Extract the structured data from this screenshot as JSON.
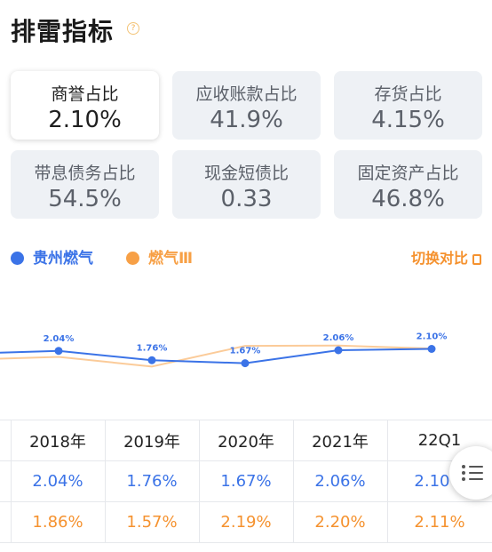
{
  "header": {
    "title": "排雷指标",
    "help_icon": "question-circle-icon"
  },
  "metrics": [
    {
      "label": "商誉占比",
      "value": "2.10%",
      "active": true
    },
    {
      "label": "应收账款占比",
      "value": "41.9%"
    },
    {
      "label": "存货占比",
      "value": "4.15%"
    },
    {
      "label": "带息债务占比",
      "value": "54.5%"
    },
    {
      "label": "现金短债比",
      "value": "0.33"
    },
    {
      "label": "固定资产占比",
      "value": "46.8%"
    }
  ],
  "legend": {
    "series1": {
      "name": "贵州燃气",
      "color": "#3b73e7"
    },
    "series2": {
      "name": "燃气Ⅲ",
      "color": "#f7a046"
    },
    "switch_label": "切换对比",
    "switch_icon": "toggle-compare-icon"
  },
  "chart_data": {
    "type": "line",
    "x": [
      "2018年",
      "2019年",
      "2020年",
      "2021年",
      "22Q1"
    ],
    "series": [
      {
        "name": "贵州燃气",
        "values": [
          2.04,
          1.76,
          1.67,
          2.06,
          2.1
        ],
        "labels": [
          "2.04%",
          "1.76%",
          "1.67%",
          "2.06%",
          "2.10%"
        ]
      },
      {
        "name": "燃气Ⅲ",
        "values": [
          1.86,
          1.57,
          2.19,
          2.2,
          2.11
        ]
      }
    ]
  },
  "table": {
    "headers": [
      "2018年",
      "2019年",
      "2020年",
      "2021年",
      "22Q1"
    ],
    "rows": [
      [
        "2.04%",
        "1.76%",
        "1.67%",
        "2.06%",
        "2.10%"
      ],
      [
        "1.86%",
        "1.57%",
        "2.19%",
        "2.20%",
        "2.11%"
      ]
    ]
  },
  "fab": {
    "icon": "list-menu-icon"
  }
}
